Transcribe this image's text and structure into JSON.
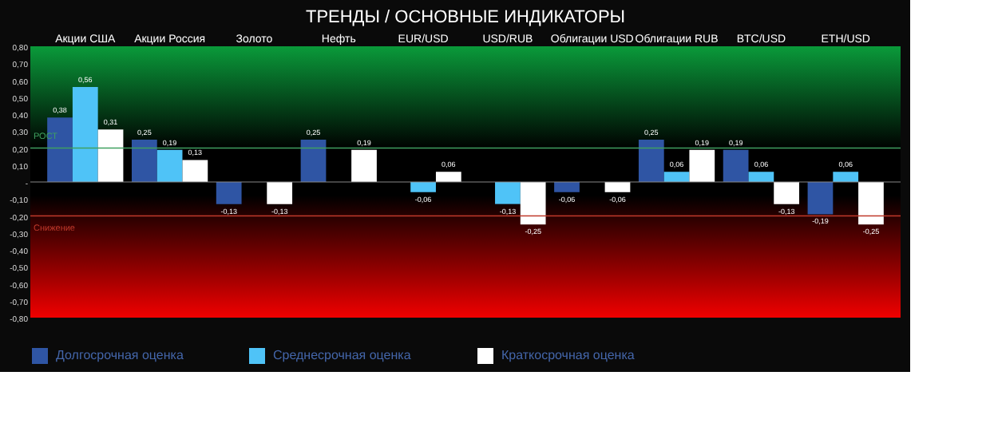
{
  "chart_data": {
    "type": "bar",
    "title": "ТРЕНДЫ / ОСНОВНЫЕ ИНДИКАТОРЫ",
    "categories": [
      "Акции США",
      "Акции Россия",
      "Золото",
      "Нефть",
      "EUR/USD",
      "USD/RUB",
      "Облигации USD",
      "Облигации RUB",
      "BTC/USD",
      "ETH/USD"
    ],
    "series": [
      {
        "name": "Долгосрочная оценка",
        "color": "#2f55a4",
        "values": [
          0.38,
          0.25,
          -0.13,
          0.25,
          0,
          0,
          -0.06,
          0.25,
          0.19,
          -0.19
        ],
        "value_labels": [
          "0,38",
          "0,25",
          "-0,13",
          "0,25",
          null,
          null,
          "-0,06",
          "0,25",
          "0,19",
          "-0,19"
        ]
      },
      {
        "name": "Среднесрочная оценка",
        "color": "#4fc3f7",
        "values": [
          0.56,
          0.19,
          0,
          0,
          -0.06,
          -0.13,
          0,
          0.06,
          0.06,
          0.06
        ],
        "value_labels": [
          "0,56",
          "0,19",
          null,
          null,
          "-0,06",
          "-0,13",
          null,
          "0,06",
          "0,06",
          "0,06"
        ]
      },
      {
        "name": "Краткосрочная оценка",
        "color": "#ffffff",
        "values": [
          0.31,
          0.13,
          -0.13,
          0.19,
          0.06,
          -0.25,
          -0.06,
          0.19,
          -0.13,
          -0.25
        ],
        "value_labels": [
          "0,31",
          "0,13",
          "-0,13",
          "0,19",
          "0,06",
          "-0,25",
          "-0,06",
          "0,19",
          "-0,13",
          "-0,25"
        ]
      }
    ],
    "ylim": [
      -0.8,
      0.8
    ],
    "yticks": [
      {
        "value": -0.8,
        "label": "-0,80"
      },
      {
        "value": -0.7,
        "label": "-0,70"
      },
      {
        "value": -0.6,
        "label": "-0,60"
      },
      {
        "value": -0.5,
        "label": "-0,50"
      },
      {
        "value": -0.4,
        "label": "-0,40"
      },
      {
        "value": -0.3,
        "label": "-0,30"
      },
      {
        "value": -0.2,
        "label": "-0,20"
      },
      {
        "value": -0.1,
        "label": "-0,10"
      },
      {
        "value": 0,
        "label": "-"
      },
      {
        "value": 0.1,
        "label": "0,10"
      },
      {
        "value": 0.2,
        "label": "0,20"
      },
      {
        "value": 0.3,
        "label": "0,30"
      },
      {
        "value": 0.4,
        "label": "0,40"
      },
      {
        "value": 0.5,
        "label": "0,50"
      },
      {
        "value": 0.6,
        "label": "0,60"
      },
      {
        "value": 0.7,
        "label": "0,70"
      },
      {
        "value": 0.8,
        "label": "0,80"
      }
    ],
    "ref_lines": [
      {
        "axis": "y",
        "value": 0.2,
        "label": "РОСТ",
        "color": "#3fa060"
      },
      {
        "axis": "y",
        "value": -0.2,
        "label": "Снижение",
        "color": "#c0392b"
      }
    ],
    "grid": false,
    "legend": "bottom"
  }
}
